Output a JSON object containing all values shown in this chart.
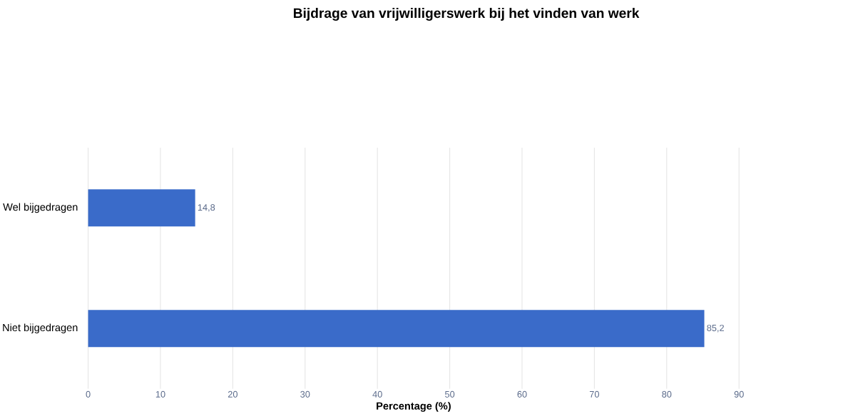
{
  "chart_data": {
    "type": "bar",
    "orientation": "horizontal",
    "title": "Bijdrage van vrijwilligerswerk bij het vinden van werk",
    "xlabel": "Percentage (%)",
    "categories": [
      "Wel bijgedragen",
      "Niet bijgedragen"
    ],
    "values": [
      14.8,
      85.2
    ],
    "value_labels": [
      "14,8",
      "85,2"
    ],
    "color": "#3a6bc9",
    "xlim": [
      0,
      90
    ],
    "xticks": [
      0,
      10,
      20,
      30,
      40,
      50,
      60,
      70,
      80,
      90
    ],
    "grid": "x"
  }
}
